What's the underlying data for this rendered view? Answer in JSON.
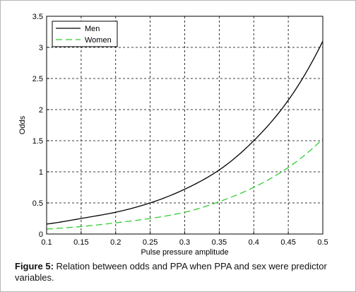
{
  "figure": {
    "caption_label": "Figure 5:",
    "caption_text": " Relation between odds and PPA when PPA and sex were predictor variables."
  },
  "chart_data": {
    "type": "line",
    "title": "",
    "xlabel": "Pulse pressure amplitude",
    "ylabel": "Odds",
    "xlim": [
      0.1,
      0.5
    ],
    "ylim": [
      0,
      3.5
    ],
    "xticks": [
      "0.1",
      "0.15",
      "0.2",
      "0.25",
      "0.3",
      "0.35",
      "0.4",
      "0.45",
      "0.5"
    ],
    "yticks": [
      "0",
      "0.5",
      "1",
      "1.5",
      "2",
      "2.5",
      "3",
      "3.5"
    ],
    "grid": true,
    "legend_position": "top-left",
    "x": [
      0.1,
      0.15,
      0.2,
      0.25,
      0.3,
      0.35,
      0.4,
      0.45,
      0.5
    ],
    "series": [
      {
        "name": "Men",
        "values": [
          0.16,
          0.25,
          0.35,
          0.5,
          0.72,
          1.03,
          1.5,
          2.15,
          3.1
        ],
        "color": "#000000",
        "dash": "solid"
      },
      {
        "name": "Women",
        "values": [
          0.08,
          0.12,
          0.18,
          0.25,
          0.35,
          0.52,
          0.75,
          1.07,
          1.53
        ],
        "color": "#33cc33",
        "dash": "dashed"
      }
    ]
  }
}
